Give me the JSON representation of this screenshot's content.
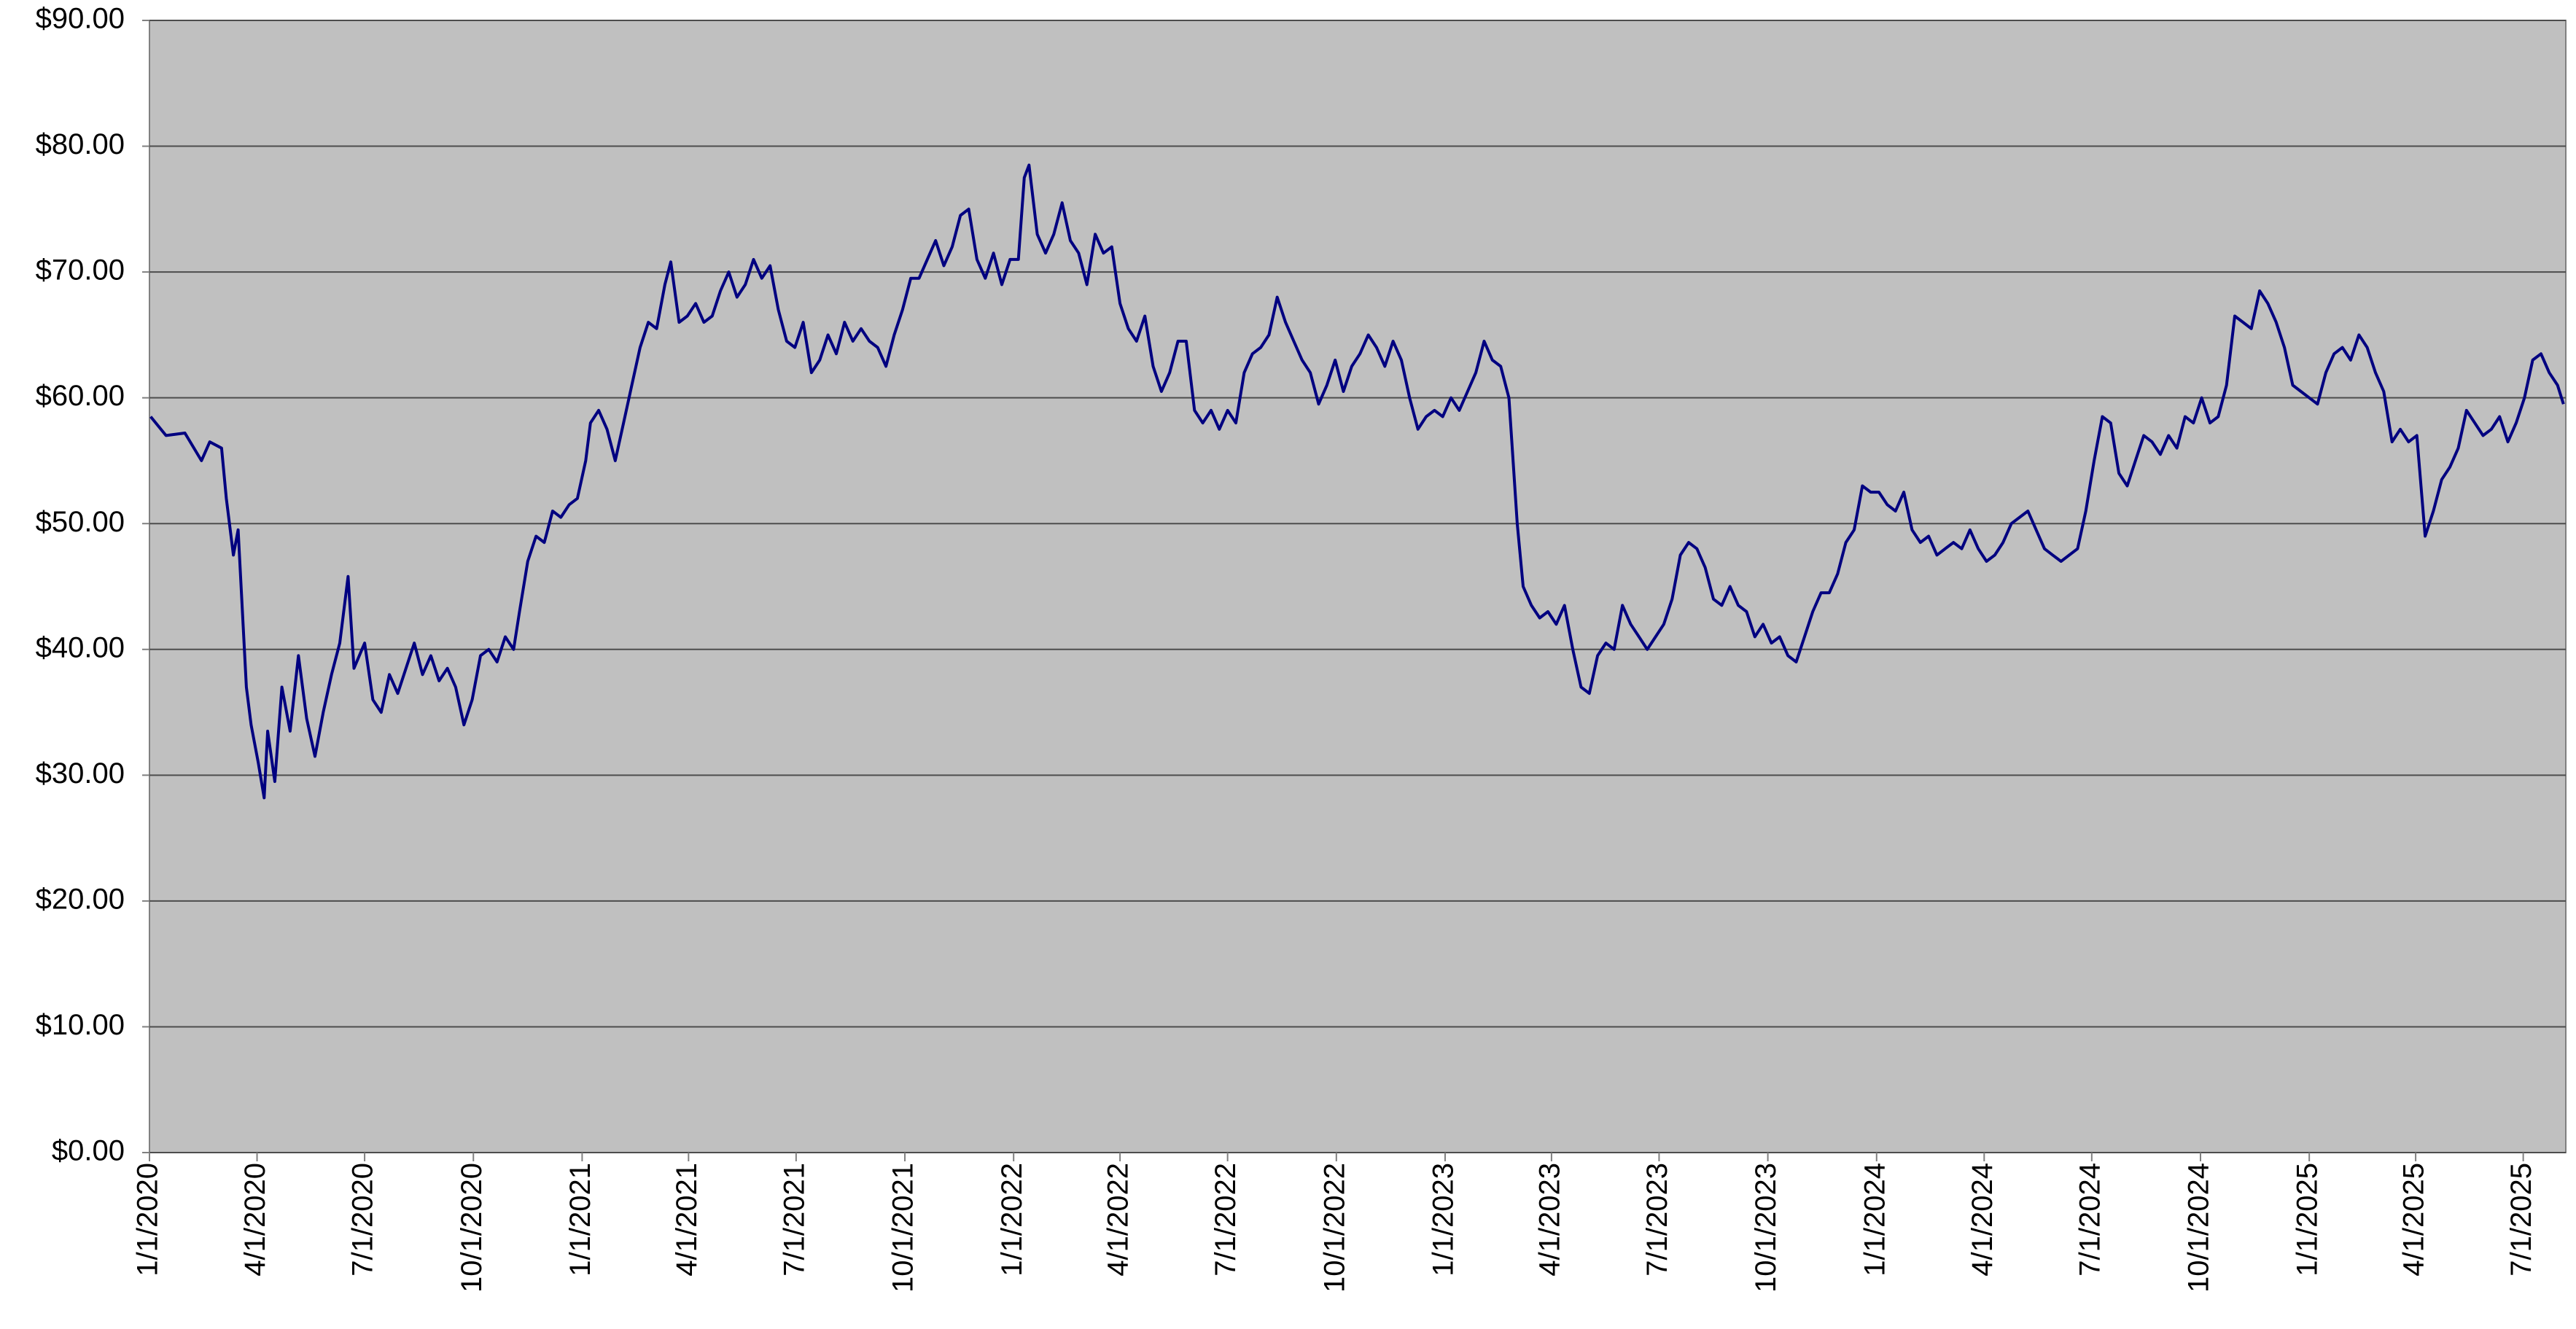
{
  "chart_data": {
    "type": "line",
    "color": "#000080",
    "background": "#c0c0c0",
    "grid": true,
    "xlim": [
      "1/1/2020",
      "8/6/2025"
    ],
    "xticks": [
      "1/1/2020",
      "4/1/2020",
      "7/1/2020",
      "10/1/2020",
      "1/1/2021",
      "4/1/2021",
      "7/1/2021",
      "10/1/2021",
      "1/1/2022",
      "4/1/2022",
      "7/1/2022",
      "10/1/2022",
      "1/1/2023",
      "4/1/2023",
      "7/1/2023",
      "10/1/2023",
      "1/1/2024",
      "4/1/2024",
      "7/1/2024",
      "10/1/2024",
      "1/1/2025",
      "4/1/2025",
      "7/1/2025"
    ],
    "ylim": [
      0,
      90
    ],
    "yticks": [
      {
        "value": 0,
        "label": "$0.00"
      },
      {
        "value": 10,
        "label": "$10.00"
      },
      {
        "value": 20,
        "label": "$20.00"
      },
      {
        "value": 30,
        "label": "$30.00"
      },
      {
        "value": 40,
        "label": "$40.00"
      },
      {
        "value": 50,
        "label": "$50.00"
      },
      {
        "value": 60,
        "label": "$60.00"
      },
      {
        "value": 70,
        "label": "$70.00"
      },
      {
        "value": 80,
        "label": "$80.00"
      },
      {
        "value": 90,
        "label": "$90.00"
      }
    ],
    "x": [
      "1/2/2020",
      "1/15/2020",
      "1/31/2020",
      "2/14/2020",
      "2/21/2020",
      "3/2/2020",
      "3/6/2020",
      "3/12/2020",
      "3/16/2020",
      "3/23/2020",
      "3/27/2020",
      "4/2/2020",
      "4/7/2020",
      "4/10/2020",
      "4/16/2020",
      "4/22/2020",
      "4/29/2020",
      "5/6/2020",
      "5/13/2020",
      "5/20/2020",
      "5/27/2020",
      "6/3/2020",
      "6/10/2020",
      "6/17/2020",
      "6/22/2020",
      "7/1/2020",
      "7/8/2020",
      "7/15/2020",
      "7/22/2020",
      "7/29/2020",
      "8/5/2020",
      "8/12/2020",
      "8/19/2020",
      "8/26/2020",
      "9/2/2020",
      "9/9/2020",
      "9/16/2020",
      "9/23/2020",
      "9/30/2020",
      "10/7/2020",
      "10/14/2020",
      "10/21/2020",
      "10/28/2020",
      "11/4/2020",
      "11/9/2020",
      "11/16/2020",
      "11/23/2020",
      "11/30/2020",
      "12/7/2020",
      "12/14/2020",
      "12/21/2020",
      "12/28/2020",
      "1/4/2021",
      "1/8/2021",
      "1/15/2021",
      "1/22/2021",
      "1/29/2021",
      "2/5/2021",
      "2/12/2021",
      "2/19/2021",
      "2/26/2021",
      "3/5/2021",
      "3/12/2021",
      "3/17/2021",
      "3/24/2021",
      "3/31/2021",
      "4/7/2021",
      "4/14/2021",
      "4/21/2021",
      "4/28/2021",
      "5/5/2021",
      "5/12/2021",
      "5/19/2021",
      "5/26/2021",
      "6/2/2021",
      "6/9/2021",
      "6/16/2021",
      "6/23/2021",
      "6/30/2021",
      "7/7/2021",
      "7/14/2021",
      "7/21/2021",
      "7/28/2021",
      "8/4/2021",
      "8/11/2021",
      "8/18/2021",
      "8/25/2021",
      "9/1/2021",
      "9/8/2021",
      "9/15/2021",
      "9/22/2021",
      "9/29/2021",
      "10/6/2021",
      "10/13/2021",
      "10/20/2021",
      "10/27/2021",
      "11/3/2021",
      "11/10/2021",
      "11/17/2021",
      "11/24/2021",
      "12/1/2021",
      "12/8/2021",
      "12/15/2021",
      "12/22/2021",
      "12/29/2021",
      "1/5/2022",
      "1/10/2022",
      "1/14/2022",
      "1/21/2022",
      "1/28/2022",
      "2/4/2022",
      "2/11/2022",
      "2/18/2022",
      "2/25/2022",
      "3/4/2022",
      "3/11/2022",
      "3/18/2022",
      "3/25/2022",
      "4/1/2022",
      "4/8/2022",
      "4/15/2022",
      "4/22/2022",
      "4/29/2022",
      "5/6/2022",
      "5/13/2022",
      "5/20/2022",
      "5/27/2022",
      "6/3/2022",
      "6/10/2022",
      "6/17/2022",
      "6/24/2022",
      "7/1/2022",
      "7/8/2022",
      "7/15/2022",
      "7/22/2022",
      "7/29/2022",
      "8/5/2022",
      "8/12/2022",
      "8/19/2022",
      "8/26/2022",
      "9/2/2022",
      "9/9/2022",
      "9/16/2022",
      "9/23/2022",
      "9/30/2022",
      "10/7/2022",
      "10/14/2022",
      "10/21/2022",
      "10/28/2022",
      "11/4/2022",
      "11/11/2022",
      "11/18/2022",
      "11/25/2022",
      "12/2/2022",
      "12/9/2022",
      "12/16/2022",
      "12/23/2022",
      "12/30/2022",
      "1/6/2023",
      "1/13/2023",
      "1/20/2023",
      "1/27/2023",
      "2/3/2023",
      "2/10/2023",
      "2/17/2023",
      "2/24/2023",
      "3/3/2023",
      "3/8/2023",
      "3/15/2023",
      "3/22/2023",
      "3/29/2023",
      "4/5/2023",
      "4/12/2023",
      "4/19/2023",
      "4/26/2023",
      "5/3/2023",
      "5/10/2023",
      "5/17/2023",
      "5/24/2023",
      "5/31/2023",
      "6/7/2023",
      "6/14/2023",
      "6/21/2023",
      "6/28/2023",
      "7/5/2023",
      "7/12/2023",
      "7/19/2023",
      "7/26/2023",
      "8/2/2023",
      "8/9/2023",
      "8/16/2023",
      "8/23/2023",
      "8/30/2023",
      "9/6/2023",
      "9/13/2023",
      "9/20/2023",
      "9/27/2023",
      "10/4/2023",
      "10/11/2023",
      "10/18/2023",
      "10/25/2023",
      "11/1/2023",
      "11/8/2023",
      "11/15/2023",
      "11/22/2023",
      "11/29/2023",
      "12/6/2023",
      "12/13/2023",
      "12/20/2023",
      "12/27/2023",
      "1/3/2024",
      "1/10/2024",
      "1/17/2024",
      "1/24/2024",
      "1/31/2024",
      "2/7/2024",
      "2/14/2024",
      "2/21/2024",
      "2/28/2024",
      "3/6/2024",
      "3/13/2024",
      "3/20/2024",
      "3/27/2024",
      "4/3/2024",
      "4/10/2024",
      "4/17/2024",
      "4/24/2024",
      "5/1/2024",
      "5/8/2024",
      "5/15/2024",
      "5/22/2024",
      "5/29/2024",
      "6/5/2024",
      "6/12/2024",
      "6/19/2024",
      "6/26/2024",
      "7/3/2024",
      "7/10/2024",
      "7/17/2024",
      "7/24/2024",
      "7/31/2024",
      "8/7/2024",
      "8/14/2024",
      "8/21/2024",
      "8/28/2024",
      "9/4/2024",
      "9/11/2024",
      "9/18/2024",
      "9/25/2024",
      "10/2/2024",
      "10/9/2024",
      "10/16/2024",
      "10/23/2024",
      "10/30/2024",
      "11/6/2024",
      "11/13/2024",
      "11/20/2024",
      "11/27/2024",
      "12/4/2024",
      "12/11/2024",
      "12/18/2024",
      "12/25/2024",
      "1/1/2025",
      "1/8/2025",
      "1/15/2025",
      "1/22/2025",
      "1/29/2025",
      "2/5/2025",
      "2/12/2025",
      "2/19/2025",
      "2/26/2025",
      "3/5/2025",
      "3/12/2025",
      "3/19/2025",
      "3/26/2025",
      "4/2/2025",
      "4/9/2025",
      "4/16/2025",
      "4/23/2025",
      "4/30/2025",
      "5/7/2025",
      "5/14/2025",
      "5/21/2025",
      "5/28/2025",
      "6/4/2025",
      "6/11/2025",
      "6/18/2025",
      "6/25/2025",
      "7/2/2025",
      "7/9/2025",
      "7/16/2025",
      "7/23/2025",
      "7/30/2025",
      "8/4/2025"
    ],
    "values": [
      58.5,
      57,
      57.2,
      55,
      56.5,
      56,
      52,
      47.5,
      49.5,
      37,
      34,
      31,
      28.2,
      33.5,
      29.5,
      37,
      33.5,
      39.5,
      34.5,
      31.5,
      35,
      38,
      40.5,
      45.8,
      38.5,
      40.5,
      36,
      35,
      38,
      36.5,
      38.5,
      40.5,
      38,
      39.5,
      37.5,
      38.5,
      37,
      34,
      36,
      39.5,
      40,
      39,
      41,
      40,
      43,
      47,
      49,
      48.5,
      51,
      50.5,
      51.5,
      52,
      55,
      58,
      59,
      57.5,
      55,
      58,
      61,
      64,
      66,
      65.5,
      69,
      70.8,
      66,
      66.5,
      67.5,
      66,
      66.5,
      68.5,
      70,
      68,
      69,
      71,
      69.5,
      70.5,
      67,
      64.5,
      64,
      66,
      62,
      63,
      65,
      63.5,
      66,
      64.5,
      65.5,
      64.5,
      64,
      62.5,
      65,
      67,
      69.5,
      69.5,
      71,
      72.5,
      70.5,
      72,
      74.5,
      75,
      71,
      69.5,
      71.5,
      69,
      71,
      71,
      77.5,
      78.5,
      73,
      71.5,
      73,
      75.5,
      72.5,
      71.5,
      69,
      73,
      71.5,
      72,
      67.5,
      65.5,
      64.5,
      66.5,
      62.5,
      60.5,
      62,
      64.5,
      64.5,
      59,
      58,
      59,
      57.5,
      59,
      58,
      62,
      63.5,
      64,
      65,
      68,
      66,
      64.5,
      63,
      62,
      59.5,
      61,
      63,
      60.5,
      62.5,
      63.5,
      65,
      64,
      62.5,
      64.5,
      63,
      60,
      57.5,
      58.5,
      59,
      58.5,
      60,
      59,
      60.5,
      62,
      64.5,
      63,
      62.5,
      60,
      50,
      45,
      43.5,
      42.5,
      43,
      42,
      43.5,
      40,
      37,
      36.5,
      39.5,
      40.5,
      40,
      43.5,
      42,
      41,
      40,
      41,
      42,
      44,
      47.5,
      48.5,
      48,
      46.5,
      44,
      43.5,
      45,
      43.5,
      43,
      41,
      42,
      40.5,
      41,
      39.5,
      39,
      41,
      43,
      44.5,
      44.5,
      46,
      48.5,
      49.5,
      53,
      52.5,
      52.5,
      51.5,
      51,
      52.5,
      49.5,
      48.5,
      49,
      47.5,
      48,
      48.5,
      48,
      49.5,
      48,
      47,
      47.5,
      48.5,
      50,
      50.5,
      51,
      49.5,
      48,
      47.5,
      47,
      47.5,
      48,
      51,
      55,
      58.5,
      58,
      54,
      53,
      55,
      57,
      56.5,
      55.5,
      57,
      56,
      58.5,
      58,
      60,
      58,
      58.5,
      61,
      66.5,
      66,
      65.5,
      68.5,
      67.5,
      66,
      64,
      61,
      60.5,
      60,
      59.5,
      62,
      63.5,
      64,
      63,
      65,
      64,
      62,
      60.5,
      56.5,
      57.5,
      56.5,
      57,
      49,
      51,
      53.5,
      54.5,
      56,
      59,
      58,
      57,
      57.5,
      58.5,
      56.5,
      58,
      60,
      63,
      63.5,
      62,
      61,
      59.5
    ]
  }
}
